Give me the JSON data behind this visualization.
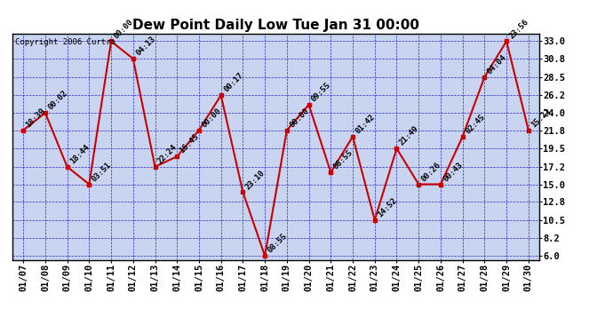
{
  "title": "Dew Point Daily Low Tue Jan 31 00:00",
  "copyright": "Copyright 2006 Curtro",
  "x_labels": [
    "01/07",
    "01/08",
    "01/09",
    "01/10",
    "01/11",
    "01/12",
    "01/13",
    "01/14",
    "01/15",
    "01/16",
    "01/17",
    "01/18",
    "01/19",
    "01/20",
    "01/21",
    "01/22",
    "01/23",
    "01/24",
    "01/25",
    "01/26",
    "01/27",
    "01/28",
    "01/29",
    "01/30"
  ],
  "y_values": [
    21.8,
    24.0,
    17.2,
    15.0,
    33.0,
    30.8,
    17.2,
    18.5,
    21.8,
    26.2,
    14.0,
    6.0,
    21.8,
    25.0,
    16.5,
    21.0,
    10.5,
    19.5,
    15.0,
    15.0,
    21.0,
    28.5,
    33.0,
    21.8
  ],
  "point_labels": [
    "18:39",
    "00:02",
    "18:44",
    "03:51",
    "00:00",
    "04:13",
    "22:24",
    "16:45",
    "00:00",
    "00:17",
    "23:10",
    "08:55",
    "00:00",
    "09:55",
    "08:55",
    "01:42",
    "14:52",
    "21:49",
    "00:26",
    "00:43",
    "02:45",
    "04:04",
    "23:56",
    "15:21"
  ],
  "y_ticks": [
    6.0,
    8.2,
    10.5,
    12.8,
    15.0,
    17.2,
    19.5,
    21.8,
    24.0,
    26.2,
    28.5,
    30.8,
    33.0
  ],
  "ylim": [
    5.5,
    34.0
  ],
  "line_color": "#cc0000",
  "marker_color": "#cc0000",
  "bg_color": "#c8d4f0",
  "grid_color": "#0000bb",
  "border_color": "#000000",
  "title_fontsize": 11,
  "label_fontsize": 6.5,
  "tick_fontsize": 7.5,
  "copyright_fontsize": 6.5
}
